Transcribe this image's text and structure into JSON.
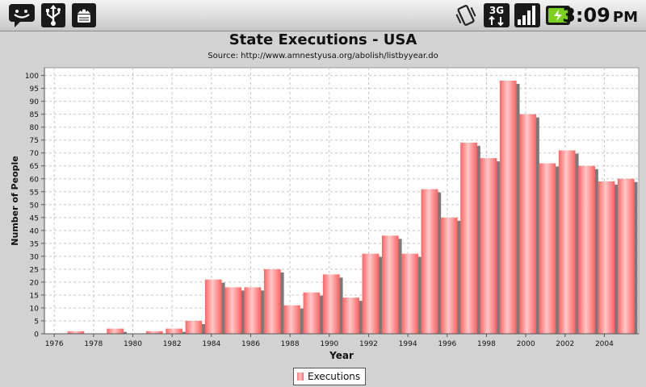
{
  "status_bar": {
    "icons_left": [
      "message-icon",
      "usb-icon",
      "android-debug-icon"
    ],
    "icons_right": [
      "vibrate-icon",
      "network-3g-icon",
      "signal-icon",
      "battery-charging-icon"
    ],
    "time": "3:09",
    "ampm": "PM"
  },
  "colors": {
    "bar": "#ff6b6b",
    "bar_highlight": "#ffc4c4",
    "shadow": "#7a7a7a",
    "plot_background": "#ffffff",
    "grid": "#c8c8c8"
  },
  "chart_data": {
    "type": "bar",
    "title": "State Executions - USA",
    "subtitle": "Source: http://www.amnestyusa.org/abolish/listbyyear.do",
    "xlabel": "Year",
    "ylabel": "Number of People",
    "ylim": [
      0,
      103
    ],
    "yticks": [
      0,
      5,
      10,
      15,
      20,
      25,
      30,
      35,
      40,
      45,
      50,
      55,
      60,
      65,
      70,
      75,
      80,
      85,
      90,
      95,
      100
    ],
    "xtick_labels": [
      "1976",
      "1978",
      "1980",
      "1982",
      "1984",
      "1986",
      "1988",
      "1990",
      "1992",
      "1994",
      "1996",
      "1998",
      "2000",
      "2002",
      "2004"
    ],
    "grid": true,
    "legend_position": "bottom",
    "series": [
      {
        "name": "Executions",
        "x": [
          1976,
          1977,
          1978,
          1979,
          1980,
          1981,
          1982,
          1983,
          1984,
          1985,
          1986,
          1987,
          1988,
          1989,
          1990,
          1991,
          1992,
          1993,
          1994,
          1995,
          1996,
          1997,
          1998,
          1999,
          2000,
          2001,
          2002,
          2003,
          2004,
          2005
        ],
        "values": [
          0,
          1,
          0,
          2,
          0,
          1,
          2,
          5,
          21,
          18,
          18,
          25,
          11,
          16,
          23,
          14,
          31,
          38,
          31,
          56,
          45,
          74,
          68,
          98,
          85,
          66,
          71,
          65,
          59,
          60
        ]
      }
    ]
  }
}
